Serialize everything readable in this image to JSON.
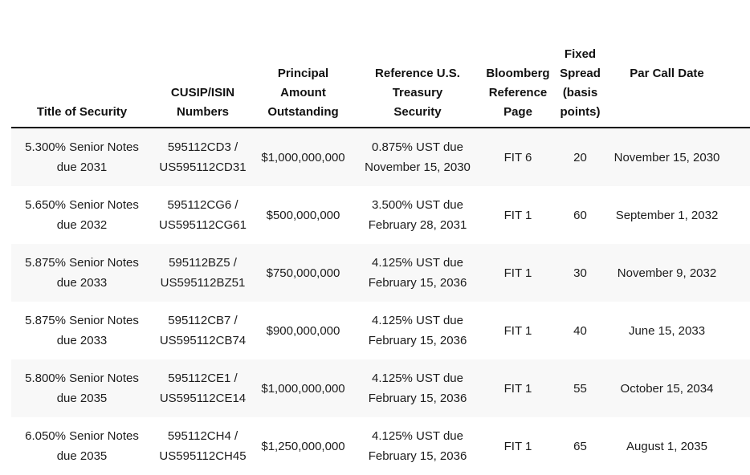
{
  "colors": {
    "row_shade": "#f8f8f8",
    "header_rule": "#000000",
    "text": "#1c1c1c"
  },
  "table": {
    "columns": [
      {
        "label": "Title of Security"
      },
      {
        "label": "CUSIP/ISIN\nNumbers"
      },
      {
        "label": "Principal\nAmount\nOutstanding"
      },
      {
        "label": "Reference U.S.\nTreasury\nSecurity"
      },
      {
        "label": "Bloomberg\nReference\nPage"
      },
      {
        "label": "Fixed\nSpread\n(basis\npoints)"
      },
      {
        "label": "Par Call Date"
      }
    ],
    "rows": [
      {
        "title": "5.300% Senior Notes\ndue 2031",
        "cusip": "595112CD3 /\nUS595112CD31",
        "principal": "$1,000,000,000",
        "reference": "0.875% UST due\nNovember 15, 2030",
        "bloomberg": "FIT 6",
        "spread": "20",
        "par_call": "November 15, 2030"
      },
      {
        "title": "5.650% Senior Notes\ndue 2032",
        "cusip": "595112CG6 /\nUS595112CG61",
        "principal": "$500,000,000",
        "reference": "3.500% UST due\nFebruary 28, 2031",
        "bloomberg": "FIT 1",
        "spread": "60",
        "par_call": "September 1, 2032"
      },
      {
        "title": "5.875% Senior Notes\ndue 2033",
        "cusip": "595112BZ5 /\nUS595112BZ51",
        "principal": "$750,000,000",
        "reference": "4.125% UST due\nFebruary 15, 2036",
        "bloomberg": "FIT 1",
        "spread": "30",
        "par_call": "November 9, 2032"
      },
      {
        "title": "5.875% Senior Notes\ndue 2033",
        "cusip": "595112CB7 /\nUS595112CB74",
        "principal": "$900,000,000",
        "reference": "4.125% UST due\nFebruary 15, 2036",
        "bloomberg": "FIT 1",
        "spread": "40",
        "par_call": "June 15, 2033"
      },
      {
        "title": "5.800% Senior Notes\ndue 2035",
        "cusip": "595112CE1 /\nUS595112CE14",
        "principal": "$1,000,000,000",
        "reference": "4.125% UST due\nFebruary 15, 2036",
        "bloomberg": "FIT 1",
        "spread": "55",
        "par_call": "October 15, 2034"
      },
      {
        "title": "6.050% Senior Notes\ndue 2035",
        "cusip": "595112CH4 /\nUS595112CH45",
        "principal": "$1,250,000,000",
        "reference": "4.125% UST due\nFebruary 15, 2036",
        "bloomberg": "FIT 1",
        "spread": "65",
        "par_call": "August 1, 2035"
      }
    ]
  }
}
